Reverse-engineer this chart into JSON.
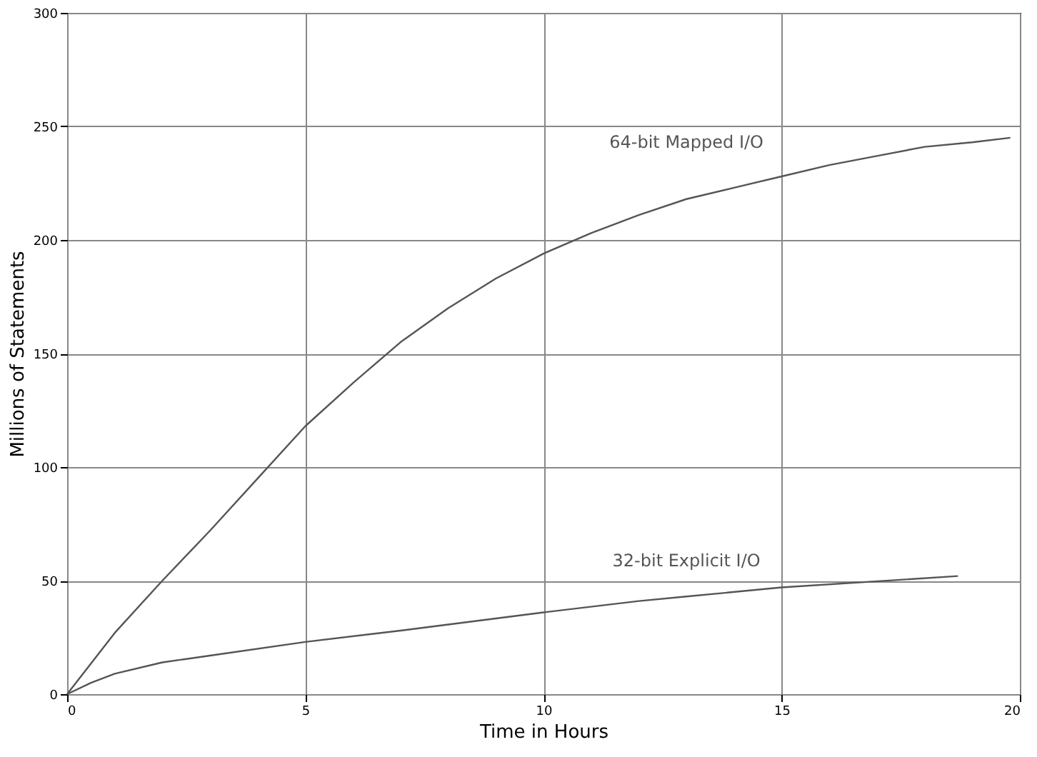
{
  "chart_data": {
    "type": "line",
    "xlabel": "Time in Hours",
    "ylabel": "Millions of Statements",
    "xlim": [
      0,
      20
    ],
    "xticks": [
      0,
      5,
      10,
      15,
      20
    ],
    "ylim": [
      0,
      300
    ],
    "yticks": [
      0,
      50,
      100,
      150,
      200,
      250,
      300
    ],
    "grid": true,
    "legend": false,
    "marker": "none",
    "line_style": "solid",
    "series": [
      {
        "name": "64-bit Mapped I/O",
        "color": "#555555",
        "x": [
          0,
          1,
          2,
          3,
          4,
          5,
          6,
          7,
          8,
          9,
          10,
          11,
          12,
          13,
          14,
          15,
          16,
          17,
          18,
          19,
          19.8
        ],
        "values": [
          0,
          27,
          50,
          72,
          95,
          118,
          137,
          155,
          170,
          183,
          194,
          203,
          211,
          218,
          223,
          228,
          233,
          237,
          241,
          243,
          245
        ]
      },
      {
        "name": "32-bit Explicit I/O",
        "color": "#555555",
        "x": [
          0,
          0.5,
          1,
          2,
          3,
          5,
          7,
          10,
          12,
          13,
          15,
          18.7
        ],
        "values": [
          0,
          5,
          9,
          14,
          17,
          23,
          28,
          36,
          41,
          43,
          47,
          52
        ]
      }
    ]
  }
}
